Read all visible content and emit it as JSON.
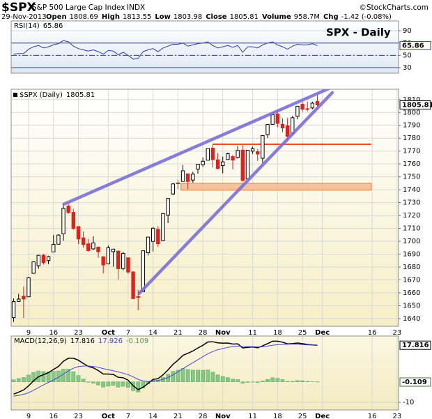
{
  "header": {
    "symbol": "$SPX",
    "name": "S&P 500 Large Cap Index",
    "exchange": "INDX",
    "source": "©StockCharts.com",
    "date": "29-Nov-2013",
    "quote": [
      {
        "label": "Open",
        "value": "1808.69"
      },
      {
        "label": "High",
        "value": "1813.55"
      },
      {
        "label": "Low",
        "value": "1803.98"
      },
      {
        "label": "Close",
        "value": "1805.81"
      },
      {
        "label": "Volume",
        "value": "958.7M"
      },
      {
        "label": "Chg",
        "value": "-1.42 (-0.08%)"
      }
    ]
  },
  "chart_data": [
    {
      "type": "line",
      "annotation": "SPX - Daily",
      "x": [
        0,
        1,
        2,
        3,
        4,
        5,
        6,
        7,
        8,
        9,
        10,
        11,
        12,
        13,
        14,
        15,
        16,
        17,
        18,
        19,
        20,
        21,
        22,
        23,
        24,
        25,
        26,
        27,
        28,
        29,
        30,
        31,
        32,
        33,
        34,
        35,
        36,
        37,
        38,
        39,
        40,
        41,
        42,
        43,
        44,
        45,
        46,
        47,
        48,
        49,
        50,
        51,
        52,
        53,
        54,
        55,
        56,
        57,
        58,
        59,
        60,
        61
      ],
      "series": [
        {
          "name": "RSI(14)",
          "color": "#2b3bb0",
          "values": [
            52,
            53,
            53,
            60,
            64,
            66,
            62,
            64,
            67,
            69,
            74,
            72,
            65,
            61,
            59,
            57,
            59,
            56,
            52,
            58,
            57,
            51,
            55,
            50,
            44,
            45,
            56,
            59,
            61,
            56,
            62,
            65,
            68,
            68,
            70,
            65,
            67,
            69,
            70,
            72,
            66,
            62,
            64,
            66,
            63,
            66,
            55,
            64,
            64,
            62,
            67,
            70,
            72,
            67,
            64,
            60,
            65,
            68,
            67,
            67,
            69,
            65.86
          ]
        }
      ],
      "levels": [
        {
          "value": 70,
          "style": "solid"
        },
        {
          "value": 50,
          "style": "dashdot"
        },
        {
          "value": 30,
          "style": "solid"
        }
      ],
      "xlim": [
        -0.5,
        77.3
      ],
      "ylim": [
        21,
        106
      ],
      "yticks": [
        90,
        70,
        50,
        30
      ],
      "grid": true
    },
    {
      "type": "candlestick",
      "name": "$SPX (Daily)",
      "up_color": "#000000",
      "down_color": "#e0201b",
      "x": [
        0,
        1,
        2,
        3,
        4,
        5,
        6,
        7,
        8,
        9,
        10,
        11,
        12,
        13,
        14,
        15,
        16,
        17,
        18,
        19,
        20,
        21,
        22,
        23,
        24,
        25,
        26,
        27,
        28,
        29,
        30,
        31,
        32,
        33,
        34,
        35,
        36,
        37,
        38,
        39,
        40,
        41,
        42,
        43,
        44,
        45,
        46,
        47,
        48,
        49,
        50,
        51,
        52,
        53,
        54,
        55,
        56,
        57,
        58,
        59,
        60,
        61
      ],
      "open": [
        1640.7,
        1653.3,
        1657.4,
        1656.9,
        1675.1,
        1681.0,
        1689.2,
        1685.0,
        1691.7,
        1697.7,
        1705.7,
        1727.3,
        1722.4,
        1711.4,
        1702.6,
        1698.0,
        1694.1,
        1695.5,
        1688.0,
        1682.4,
        1691.9,
        1692.4,
        1678.8,
        1687.2,
        1676.2,
        1656.99,
        1660.9,
        1691.1,
        1699.9,
        1709.2,
        1700.5,
        1720.2,
        1736.7,
        1745.2,
        1746.5,
        1752.3,
        1747.5,
        1756.0,
        1759.4,
        1762.9,
        1772.3,
        1763.2,
        1758.7,
        1763.4,
        1765.7,
        1765.0,
        1770.7,
        1748.4,
        1769.97,
        1769.5,
        1764.4,
        1782.8,
        1790.7,
        1798.8,
        1790.8,
        1789.6,
        1783.5,
        1797.0,
        1806.3,
        1802.9,
        1803.5,
        1808.69
      ],
      "high": [
        1655.7,
        1659.2,
        1664.8,
        1672.4,
        1684.1,
        1689.1,
        1689.97,
        1688.7,
        1704.9,
        1705.5,
        1729.4,
        1729.9,
        1725.2,
        1711.4,
        1707.6,
        1701.7,
        1703.9,
        1695.5,
        1688.0,
        1696.6,
        1693.9,
        1692.4,
        1691.9,
        1687.2,
        1676.8,
        1662.5,
        1692.6,
        1703.4,
        1711.0,
        1711.6,
        1721.8,
        1733.4,
        1745.3,
        1747.8,
        1759.3,
        1752.3,
        1753.9,
        1759.8,
        1764.99,
        1772.1,
        1775.2,
        1768.5,
        1765.7,
        1768.8,
        1767.0,
        1773.7,
        1774.5,
        1770.8,
        1773.4,
        1771.8,
        1782.0,
        1791.0,
        1798.2,
        1802.3,
        1795.5,
        1795.7,
        1797.2,
        1804.8,
        1808.1,
        1808.4,
        1808.3,
        1813.55
      ],
      "low": [
        1637.4,
        1653.1,
        1640.6,
        1656.9,
        1675.1,
        1678.7,
        1681.96,
        1682.2,
        1691.7,
        1697.7,
        1700.4,
        1721.2,
        1708.9,
        1697.8,
        1694.9,
        1691.9,
        1693.1,
        1687.1,
        1674.99,
        1682.1,
        1680.3,
        1670.4,
        1677.3,
        1674.7,
        1655.0,
        1646.5,
        1660.9,
        1689.0,
        1692.1,
        1695.5,
        1700.5,
        1714.1,
        1735.7,
        1740.6,
        1746.5,
        1740.5,
        1745.5,
        1752.5,
        1757.7,
        1762.9,
        1757.2,
        1755.7,
        1752.7,
        1763.4,
        1755.8,
        1764.2,
        1746.2,
        1747.6,
        1767.8,
        1762.3,
        1760.6,
        1780.2,
        1790.7,
        1788.4,
        1784.7,
        1777.2,
        1783.5,
        1794.7,
        1800.6,
        1800.8,
        1802.4,
        1803.98
      ],
      "close": [
        1653.1,
        1655.1,
        1655.2,
        1671.7,
        1684.0,
        1689.1,
        1683.4,
        1688.0,
        1697.6,
        1704.8,
        1725.5,
        1722.3,
        1709.9,
        1701.8,
        1697.4,
        1692.8,
        1698.7,
        1691.8,
        1681.6,
        1695.0,
        1693.9,
        1678.7,
        1690.5,
        1676.1,
        1655.5,
        1656.4,
        1692.6,
        1703.2,
        1710.1,
        1698.1,
        1721.5,
        1733.2,
        1744.5,
        1744.7,
        1754.7,
        1746.4,
        1752.1,
        1759.8,
        1762.1,
        1771.95,
        1763.3,
        1756.5,
        1761.6,
        1767.9,
        1763.0,
        1770.5,
        1747.2,
        1770.6,
        1771.9,
        1767.7,
        1782.0,
        1790.6,
        1798.2,
        1791.5,
        1787.9,
        1781.4,
        1795.9,
        1804.8,
        1802.5,
        1802.8,
        1807.2,
        1805.81
      ],
      "trendlines": [
        {
          "color": "#7a70d8",
          "x": [
            10.1,
            64
          ],
          "y": [
            1728.8,
            1819.7
          ]
        },
        {
          "color": "#7a70d8",
          "x": [
            25.2,
            64
          ],
          "y": [
            1659.5,
            1815.4
          ]
        }
      ],
      "levels": [
        {
          "color": "#e8401c",
          "x": [
            40,
            71.8
          ],
          "y": [
            1775.3,
            1775.3
          ]
        }
      ],
      "bands": [
        {
          "color": "#f6b487",
          "x": [
            33.6,
            71.8
          ],
          "y": [
            1739.6,
            1745
          ]
        }
      ],
      "xlim": [
        -0.5,
        77.3
      ],
      "ylim": [
        1634,
        1818
      ],
      "yticks": [
        1640,
        1650,
        1660,
        1670,
        1680,
        1690,
        1700,
        1710,
        1720,
        1730,
        1740,
        1750,
        1760,
        1770,
        1780,
        1790,
        1800,
        1810
      ],
      "xticks": [
        {
          "value": 3,
          "label": "9"
        },
        {
          "value": 8,
          "label": "16"
        },
        {
          "value": 13,
          "label": "23"
        },
        {
          "value": 19,
          "label": "Oct"
        },
        {
          "value": 23,
          "label": "7"
        },
        {
          "value": 28,
          "label": "14"
        },
        {
          "value": 33,
          "label": "21"
        },
        {
          "value": 38,
          "label": "28"
        },
        {
          "value": 42,
          "label": "Nov"
        },
        {
          "value": 48,
          "label": "11"
        },
        {
          "value": 53,
          "label": "18"
        },
        {
          "value": 58,
          "label": "25"
        },
        {
          "value": 62,
          "label": "Dec"
        },
        {
          "value": 72,
          "label": "16"
        },
        {
          "value": 77,
          "label": "23"
        }
      ],
      "grid": true
    },
    {
      "type": "macd",
      "name": "MACD(12,26,9)",
      "x": [
        0,
        1,
        2,
        3,
        4,
        5,
        6,
        7,
        8,
        9,
        10,
        11,
        12,
        13,
        14,
        15,
        16,
        17,
        18,
        19,
        20,
        21,
        22,
        23,
        24,
        25,
        26,
        27,
        28,
        29,
        30,
        31,
        32,
        33,
        34,
        35,
        36,
        37,
        38,
        39,
        40,
        41,
        42,
        43,
        44,
        45,
        46,
        47,
        48,
        49,
        50,
        51,
        52,
        53,
        54,
        55,
        56,
        57,
        58,
        59,
        60,
        61
      ],
      "series": [
        {
          "color": "#000000",
          "values": [
            -6,
            -5,
            -4,
            -2,
            0.5,
            2.5,
            3.5,
            4.5,
            6,
            7.5,
            10,
            11.5,
            11.5,
            10.5,
            9,
            7.5,
            6.8,
            5.5,
            3.8,
            3.8,
            3.6,
            2.2,
            2,
            0.8,
            -1.9,
            -3.8,
            -2.6,
            -0.8,
            1.2,
            1.5,
            3.4,
            5.8,
            8.5,
            10.5,
            12.9,
            13.9,
            15,
            16.5,
            17.8,
            19.4,
            19.5,
            19,
            18.8,
            18.9,
            18.4,
            18.5,
            16.5,
            16.8,
            17,
            16.6,
            17.5,
            18.6,
            19.8,
            19.8,
            19.3,
            18.5,
            18.6,
            18.9,
            18.6,
            18.2,
            18.0,
            17.816
          ]
        },
        {
          "color": "#4646e0",
          "values": [
            -7,
            -6.6,
            -6.1,
            -5.3,
            -4.1,
            -2.8,
            -1.5,
            -0.3,
            0.9,
            2.2,
            3.8,
            5.3,
            6.6,
            7.4,
            7.7,
            7.7,
            7.5,
            7.1,
            6.4,
            5.9,
            5.4,
            4.8,
            4.2,
            3.5,
            2.4,
            1.2,
            0.4,
            0.2,
            0.4,
            0.6,
            1.2,
            2.1,
            3.4,
            4.8,
            6.4,
            7.9,
            9.3,
            10.8,
            12.2,
            13.6,
            14.8,
            15.6,
            16.2,
            16.8,
            17.1,
            17.4,
            17.2,
            17.1,
            17.1,
            17.0,
            17.1,
            17.4,
            17.8,
            18.1,
            18.2,
            18.3,
            18.4,
            18.3,
            18.1,
            18.0,
            17.95,
            17.926
          ]
        }
      ],
      "histogram": {
        "color": "#86c886",
        "values": [
          1,
          1.6,
          2.1,
          3.3,
          4.6,
          5.3,
          5.0,
          4.8,
          5.1,
          5.3,
          6.2,
          6.2,
          4.9,
          3.1,
          1.3,
          -0.2,
          -0.7,
          -1.6,
          -2.6,
          -2.1,
          -1.8,
          -2.6,
          -2.2,
          -2.7,
          -4.3,
          -5.0,
          -3.0,
          -1.0,
          0.8,
          0.9,
          2.2,
          3.7,
          5.1,
          5.7,
          6.5,
          6.0,
          5.7,
          5.7,
          5.6,
          5.8,
          4.7,
          3.4,
          2.6,
          2.1,
          1.3,
          1.1,
          -0.7,
          -0.3,
          -0.1,
          -0.4,
          0.4,
          1.2,
          2.0,
          1.7,
          1.1,
          0.2,
          0.2,
          0.6,
          0.5,
          0.2,
          0.05,
          -0.109
        ]
      },
      "xlim": [
        -0.5,
        77.3
      ],
      "ylim": [
        -13.7,
        22.3
      ],
      "yticks": [
        -10
      ],
      "xticks": [
        {
          "value": 3,
          "label": "9"
        },
        {
          "value": 8,
          "label": "16"
        },
        {
          "value": 13,
          "label": "23"
        },
        {
          "value": 19,
          "label": "Oct"
        },
        {
          "value": 23,
          "label": "7"
        },
        {
          "value": 28,
          "label": "14"
        },
        {
          "value": 33,
          "label": "21"
        },
        {
          "value": 38,
          "label": "28"
        },
        {
          "value": 42,
          "label": "Nov"
        },
        {
          "value": 48,
          "label": "11"
        },
        {
          "value": 53,
          "label": "18"
        },
        {
          "value": 58,
          "label": "25"
        },
        {
          "value": 62,
          "label": "Dec"
        },
        {
          "value": 72,
          "label": "16"
        },
        {
          "value": 77,
          "label": "23"
        }
      ],
      "grid": true
    }
  ]
}
